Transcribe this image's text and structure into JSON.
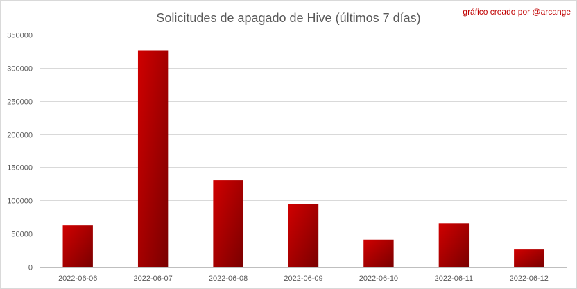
{
  "chart_data": {
    "type": "bar",
    "title": "Solicitudes de apagado de Hive (últimos 7 días)",
    "credit": "gráfico creado por @arcange",
    "categories": [
      "2022-06-06",
      "2022-06-07",
      "2022-06-08",
      "2022-06-09",
      "2022-06-10",
      "2022-06-11",
      "2022-06-12"
    ],
    "values": [
      62500,
      326500,
      130500,
      95000,
      41000,
      65500,
      26000
    ],
    "ylim": [
      0,
      350000
    ],
    "yticks": [
      "0",
      "50000",
      "100000",
      "150000",
      "200000",
      "250000",
      "300000",
      "350000"
    ],
    "xlabel": "",
    "ylabel": "",
    "grid": true,
    "legend": "none",
    "bar_color_light": "#d00000",
    "bar_color_dark": "#7a0000"
  }
}
